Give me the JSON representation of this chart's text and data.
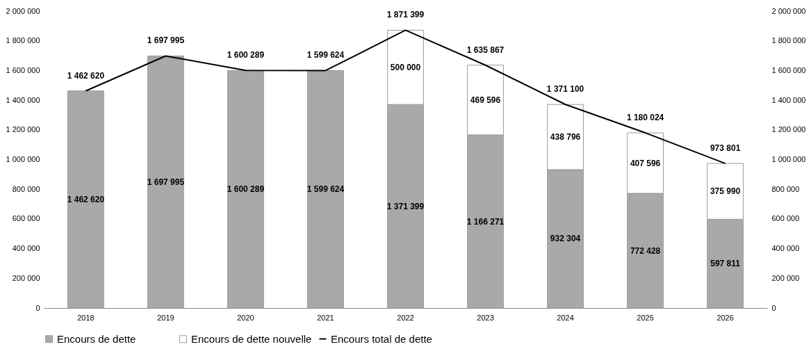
{
  "chart_data": {
    "type": "bar",
    "stacked": true,
    "categories": [
      "2018",
      "2019",
      "2020",
      "2021",
      "2022",
      "2023",
      "2024",
      "2025",
      "2026"
    ],
    "series": [
      {
        "name": "Encours de dette",
        "color": "#a9a9a9",
        "values": [
          1462620,
          1697995,
          1600289,
          1599624,
          1371399,
          1166271,
          932304,
          772428,
          597811
        ]
      },
      {
        "name": "Encours de dette nouvelle",
        "color": "#ffffff",
        "values": [
          null,
          null,
          null,
          null,
          500000,
          469596,
          438796,
          407596,
          375990
        ]
      },
      {
        "name": "Encours total de dette",
        "type": "line",
        "axis": "y2",
        "color": "#000000",
        "values": [
          1462620,
          1697995,
          1600289,
          1599624,
          1871399,
          1635867,
          1371100,
          1180024,
          973801
        ]
      }
    ],
    "ylim": [
      0,
      2000000
    ],
    "yticks": [
      {
        "value": 0,
        "label": "0"
      },
      {
        "value": 200000,
        "label": "200 000"
      },
      {
        "value": 400000,
        "label": "400 000"
      },
      {
        "value": 600000,
        "label": "600 000"
      },
      {
        "value": 800000,
        "label": "800 000"
      },
      {
        "value": 1000000,
        "label": "1 000 000"
      },
      {
        "value": 1200000,
        "label": "1 200 000"
      },
      {
        "value": 1400000,
        "label": "1 400 000"
      },
      {
        "value": 1600000,
        "label": "1 600 000"
      },
      {
        "value": 1800000,
        "label": "1 800 000"
      },
      {
        "value": 2000000,
        "label": "2 000 000"
      }
    ],
    "y2lim": [
      0,
      2000000
    ],
    "y2ticks": [
      {
        "value": 0,
        "label": "0"
      },
      {
        "value": 200000,
        "label": "200 000"
      },
      {
        "value": 400000,
        "label": "400 000"
      },
      {
        "value": 600000,
        "label": "600 000"
      },
      {
        "value": 800000,
        "label": "800 000"
      },
      {
        "value": 1000000,
        "label": "1 000 000"
      },
      {
        "value": 1200000,
        "label": "1 200 000"
      },
      {
        "value": 1400000,
        "label": "1 400 000"
      },
      {
        "value": 1600000,
        "label": "1 600 000"
      },
      {
        "value": 1800000,
        "label": "1 800 000"
      },
      {
        "value": 2000000,
        "label": "2 000 000"
      }
    ],
    "data_labels": true,
    "grid": false,
    "legend": "bottom",
    "marker": "none",
    "line_style": "solid"
  }
}
